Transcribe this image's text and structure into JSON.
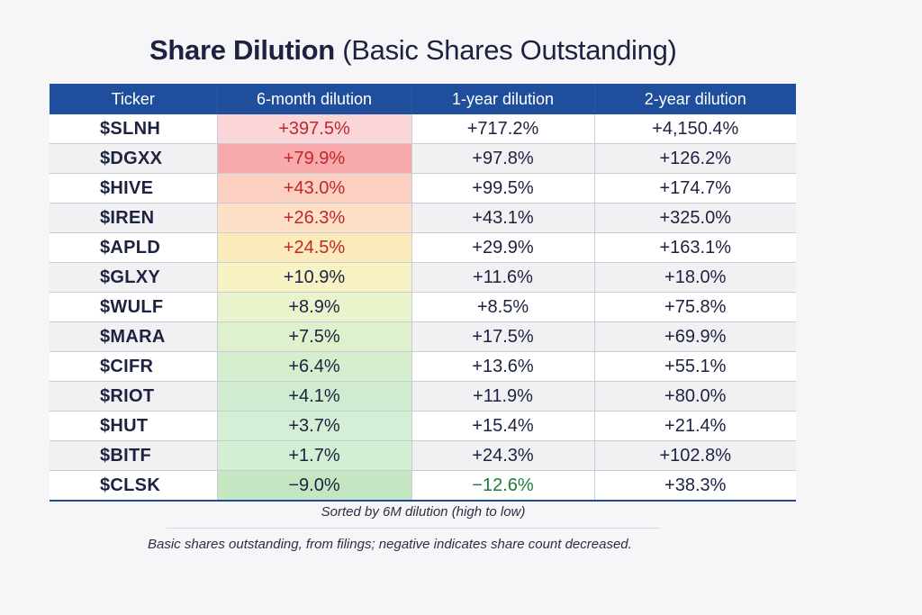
{
  "title": {
    "main": "Share Dilution",
    "sub": "(Basic Shares Outstanding)"
  },
  "chart_data": {
    "type": "table",
    "title": "Share Dilution (Basic Shares Outstanding)",
    "columns": [
      "Ticker",
      "6-month dilution",
      "1-year dilution",
      "2-year dilution"
    ],
    "rows": [
      {
        "ticker": "$SLNH",
        "m6": "+397.5%",
        "y1": "+717.2%",
        "y2": "+4,150.4%",
        "m6_value": 397.5,
        "y1_value": 717.2,
        "y2_value": 4150.4
      },
      {
        "ticker": "$DGXX",
        "m6": "+79.9%",
        "y1": "+97.8%",
        "y2": "+126.2%",
        "m6_value": 79.9,
        "y1_value": 97.8,
        "y2_value": 126.2
      },
      {
        "ticker": "$HIVE",
        "m6": "+43.0%",
        "y1": "+99.5%",
        "y2": "+174.7%",
        "m6_value": 43.0,
        "y1_value": 99.5,
        "y2_value": 174.7
      },
      {
        "ticker": "$IREN",
        "m6": "+26.3%",
        "y1": "+43.1%",
        "y2": "+325.0%",
        "m6_value": 26.3,
        "y1_value": 43.1,
        "y2_value": 325.0
      },
      {
        "ticker": "$APLD",
        "m6": "+24.5%",
        "y1": "+29.9%",
        "y2": "+163.1%",
        "m6_value": 24.5,
        "y1_value": 29.9,
        "y2_value": 163.1
      },
      {
        "ticker": "$GLXY",
        "m6": "+10.9%",
        "y1": "+11.6%",
        "y2": "+18.0%",
        "m6_value": 10.9,
        "y1_value": 11.6,
        "y2_value": 18.0
      },
      {
        "ticker": "$WULF",
        "m6": "+8.9%",
        "y1": "+8.5%",
        "y2": "+75.8%",
        "m6_value": 8.9,
        "y1_value": 8.5,
        "y2_value": 75.8
      },
      {
        "ticker": "$MARA",
        "m6": "+7.5%",
        "y1": "+17.5%",
        "y2": "+69.9%",
        "m6_value": 7.5,
        "y1_value": 17.5,
        "y2_value": 69.9
      },
      {
        "ticker": "$CIFR",
        "m6": "+6.4%",
        "y1": "+13.6%",
        "y2": "+55.1%",
        "m6_value": 6.4,
        "y1_value": 13.6,
        "y2_value": 55.1
      },
      {
        "ticker": "$RIOT",
        "m6": "+4.1%",
        "y1": "+11.9%",
        "y2": "+80.0%",
        "m6_value": 4.1,
        "y1_value": 11.9,
        "y2_value": 80.0
      },
      {
        "ticker": "$HUT",
        "m6": "+3.7%",
        "y1": "+15.4%",
        "y2": "+21.4%",
        "m6_value": 3.7,
        "y1_value": 15.4,
        "y2_value": 21.4
      },
      {
        "ticker": "$BITF",
        "m6": "+1.7%",
        "y1": "+24.3%",
        "y2": "+102.8%",
        "m6_value": 1.7,
        "y1_value": 24.3,
        "y2_value": 102.8
      },
      {
        "ticker": "$CLSK",
        "m6": "−9.0%",
        "y1": "−12.6%",
        "y2": "+38.3%",
        "m6_value": -9.0,
        "y1_value": -12.6,
        "y2_value": 38.3
      }
    ],
    "heat_colors": [
      "#fbd6d8",
      "#f8a9ac",
      "#fbd0c1",
      "#fde0c7",
      "#fbeaba",
      "#f7f3c4",
      "#e9f3cc",
      "#def0cc",
      "#d5eecd",
      "#cfecd0",
      "#d4efd6",
      "#d2eed3",
      "#c4e7c2"
    ],
    "text_colors": {
      "positive_high": "#c0272d",
      "neutral": "#1c2240",
      "negative": "#1f7a3c"
    }
  },
  "caption": "Sorted by 6M dilution (high to low)",
  "footnote": "Basic shares outstanding, from filings; negative indicates share count decreased."
}
